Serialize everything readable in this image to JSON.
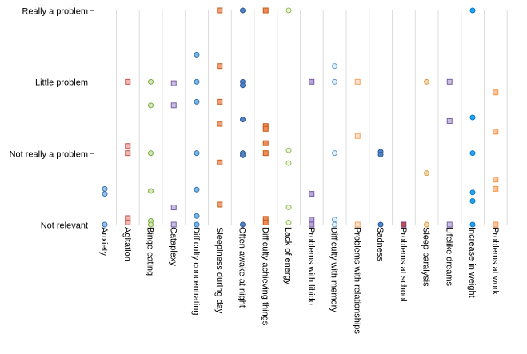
{
  "chart_data": {
    "type": "scatter",
    "title": "",
    "xlabel": "",
    "ylabel": "",
    "ylim": [
      0,
      3
    ],
    "y_ticks": [
      {
        "value": 0,
        "label": "Not relevant"
      },
      {
        "value": 1,
        "label": "Not really a problem"
      },
      {
        "value": 2,
        "label": "Little problem"
      },
      {
        "value": 3,
        "label": "Really a problem"
      }
    ],
    "grid": {
      "vertical": true,
      "horizontal": false
    },
    "legend": "none",
    "categories": [
      "Anxiety",
      "Agitation",
      "Binge eating",
      "Cataplexy",
      "Difficulty concentrating",
      "Sleepiness during day",
      "Often awake at night",
      "Difficulty achieving things",
      "Lack of energy",
      "Problems with libido",
      "Difficulty with memory",
      "Problems with relationships",
      "Sadness",
      "Problems at school",
      "Sleep paralysis",
      "Lifelike dreams",
      "Increase in weight",
      "Problems at work"
    ],
    "series": [
      {
        "category": "Anxiety",
        "marker": "circle",
        "fill": "#9dc3e6",
        "stroke": "#2e75b6",
        "values": [
          0.5,
          0.43,
          0.0
        ]
      },
      {
        "category": "Agitation",
        "marker": "square",
        "fill": "#f4b5ae",
        "stroke": "#c0504d",
        "values": [
          2.0,
          1.1,
          1.0,
          0.09,
          0.03
        ]
      },
      {
        "category": "Binge eating",
        "marker": "circle",
        "fill": "#d6e8b7",
        "stroke": "#76a93c",
        "values": [
          2.0,
          1.67,
          1.0,
          0.47,
          0.05,
          0.0
        ]
      },
      {
        "category": "Cataplexy",
        "marker": "square",
        "fill": "#c9bde0",
        "stroke": "#7b5fa9",
        "values": [
          1.98,
          1.67,
          0.24,
          0.0
        ]
      },
      {
        "category": "Difficulty concentrating",
        "marker": "circle",
        "fill": "#7fb6e2",
        "stroke": "#2e75b6",
        "values": [
          2.38,
          2.0,
          1.72,
          1.0,
          0.49,
          0.12,
          0.0
        ]
      },
      {
        "category": "Sleepiness during day",
        "marker": "square",
        "fill": "#f2a17c",
        "stroke": "#c55a11",
        "values": [
          3.0,
          2.22,
          1.72,
          1.41,
          0.87,
          0.28
        ]
      },
      {
        "category": "Often awake at night",
        "marker": "circle",
        "fill": "#4f86c6",
        "stroke": "#2f5597",
        "values": [
          3.0,
          2.0,
          1.95,
          1.47,
          1.0,
          0.97,
          0.0
        ]
      },
      {
        "category": "Difficulty achieving things",
        "marker": "square",
        "fill": "#f08b5c",
        "stroke": "#c55a11",
        "values": [
          3.0,
          1.38,
          1.34,
          1.14,
          1.0,
          0.08,
          0.03
        ]
      },
      {
        "category": "Lack of energy",
        "marker": "circle",
        "fill": "#eef5dd",
        "stroke": "#8fbf56",
        "values": [
          3.0,
          1.04,
          0.86,
          0.24,
          0.03
        ]
      },
      {
        "category": "Problems with libido",
        "marker": "square",
        "fill": "#b8a6d9",
        "stroke": "#7b5fa9",
        "values": [
          2.0,
          0.43,
          0.07,
          0.0
        ]
      },
      {
        "category": "Difficulty with memory",
        "marker": "circle",
        "fill": "#e4f1fb",
        "stroke": "#5b9bd5",
        "values": [
          2.22,
          2.0,
          1.0,
          0.07,
          0.0
        ]
      },
      {
        "category": "Problems with relationships",
        "marker": "square",
        "fill": "#fde2cf",
        "stroke": "#f4a460",
        "values": [
          2.0,
          1.24,
          0.0
        ]
      },
      {
        "category": "Sadness",
        "marker": "circle",
        "fill": "#4f86c6",
        "stroke": "#2f5597",
        "values": [
          1.02,
          0.98,
          0.0
        ]
      },
      {
        "category": "Problems at school",
        "marker": "square",
        "fill": "#c0504d",
        "stroke": "#7b3a8a",
        "values": [
          0.0
        ]
      },
      {
        "category": "Sleep paralysis",
        "marker": "circle",
        "fill": "#f5d5a4",
        "stroke": "#d39e4a",
        "values": [
          2.0,
          0.72,
          0.0
        ]
      },
      {
        "category": "Lifelike dreams",
        "marker": "square",
        "fill": "#c9bde0",
        "stroke": "#7b5fa9",
        "values": [
          2.0,
          1.45,
          0.0
        ]
      },
      {
        "category": "Increase in weight",
        "marker": "circle",
        "fill": "#1ea7f5",
        "stroke": "#0b79c0",
        "values": [
          3.0,
          1.5,
          1.0,
          0.45,
          0.33,
          0.0
        ]
      },
      {
        "category": "Problems at work",
        "marker": "square",
        "fill": "#fcc4a1",
        "stroke": "#f79646",
        "values": [
          1.85,
          1.3,
          0.63,
          0.5,
          0.0
        ]
      }
    ]
  }
}
